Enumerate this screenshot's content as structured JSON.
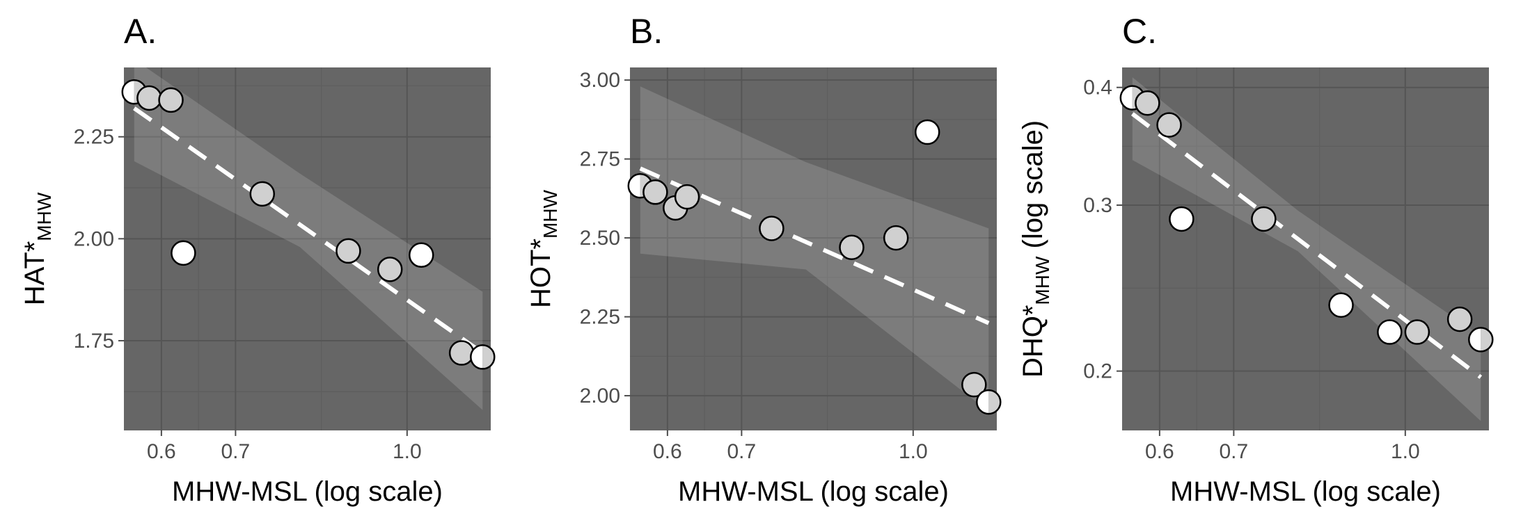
{
  "chart_data": [
    {
      "type": "scatter",
      "panel_label": "A.",
      "xlabel": "MHW-MSL (log scale)",
      "ylabel_main": "HAT*",
      "ylabel_sub": "MHW",
      "ylabel_suffix": "",
      "x_scale": "log",
      "y_scale": "linear",
      "xlim": [
        0.555,
        1.19
      ],
      "ylim": [
        1.53,
        2.42
      ],
      "x_ticks": [
        0.6,
        0.7,
        1.0
      ],
      "x_tick_labels": [
        "0.6",
        "0.7",
        "1.0"
      ],
      "y_ticks": [
        1.75,
        2.0,
        2.25
      ],
      "y_tick_labels": [
        "1.75",
        "2.00",
        "2.25"
      ],
      "fit": {
        "x": [
          0.567,
          1.17
        ],
        "y": [
          2.32,
          1.72
        ]
      },
      "ribbon": {
        "x": [
          0.567,
          0.8,
          1.17
        ],
        "upper": [
          2.44,
          2.16,
          1.87
        ],
        "lower": [
          2.19,
          1.98,
          1.58
        ]
      },
      "points": [
        {
          "x": 0.567,
          "y": 2.36,
          "fill": "half"
        },
        {
          "x": 0.585,
          "y": 2.345,
          "fill": "grey"
        },
        {
          "x": 0.612,
          "y": 2.34,
          "fill": "grey"
        },
        {
          "x": 0.628,
          "y": 1.965,
          "fill": "white"
        },
        {
          "x": 0.74,
          "y": 2.11,
          "fill": "grey"
        },
        {
          "x": 0.885,
          "y": 1.97,
          "fill": "grey"
        },
        {
          "x": 0.965,
          "y": 1.925,
          "fill": "grey"
        },
        {
          "x": 1.03,
          "y": 1.96,
          "fill": "white"
        },
        {
          "x": 1.12,
          "y": 1.72,
          "fill": "grey"
        },
        {
          "x": 1.17,
          "y": 1.71,
          "fill": "half"
        }
      ],
      "grid": true
    },
    {
      "type": "scatter",
      "panel_label": "B.",
      "xlabel": "MHW-MSL (log scale)",
      "ylabel_main": "HOT*",
      "ylabel_sub": "MHW",
      "ylabel_suffix": "",
      "x_scale": "log",
      "y_scale": "linear",
      "xlim": [
        0.555,
        1.19
      ],
      "ylim": [
        1.89,
        3.04
      ],
      "x_ticks": [
        0.6,
        0.7,
        1.0
      ],
      "x_tick_labels": [
        "0.6",
        "0.7",
        "1.0"
      ],
      "y_ticks": [
        2.0,
        2.25,
        2.5,
        2.75,
        3.0
      ],
      "y_tick_labels": [
        "2.00",
        "2.25",
        "2.50",
        "2.75",
        "3.00"
      ],
      "fit": {
        "x": [
          0.567,
          1.17
        ],
        "y": [
          2.72,
          2.23
        ]
      },
      "ribbon": {
        "x": [
          0.567,
          0.8,
          1.17
        ],
        "upper": [
          2.98,
          2.74,
          2.53
        ],
        "lower": [
          2.45,
          2.4,
          1.95
        ]
      },
      "points": [
        {
          "x": 0.567,
          "y": 2.665,
          "fill": "half"
        },
        {
          "x": 0.585,
          "y": 2.645,
          "fill": "grey"
        },
        {
          "x": 0.61,
          "y": 2.595,
          "fill": "grey"
        },
        {
          "x": 0.625,
          "y": 2.63,
          "fill": "grey"
        },
        {
          "x": 0.745,
          "y": 2.53,
          "fill": "grey"
        },
        {
          "x": 0.88,
          "y": 2.47,
          "fill": "grey"
        },
        {
          "x": 0.965,
          "y": 2.5,
          "fill": "grey"
        },
        {
          "x": 1.03,
          "y": 2.835,
          "fill": "white"
        },
        {
          "x": 1.135,
          "y": 2.035,
          "fill": "grey"
        },
        {
          "x": 1.17,
          "y": 1.98,
          "fill": "half"
        }
      ],
      "grid": true
    },
    {
      "type": "scatter",
      "panel_label": "C.",
      "xlabel": "MHW-MSL (log scale)",
      "ylabel_main": "DHQ*",
      "ylabel_sub": "MHW",
      "ylabel_suffix": " (log scale)",
      "x_scale": "log",
      "y_scale": "log",
      "xlim": [
        0.555,
        1.19
      ],
      "ylim": [
        0.173,
        0.42
      ],
      "x_ticks": [
        0.6,
        0.7,
        1.0
      ],
      "x_tick_labels": [
        "0.6",
        "0.7",
        "1.0"
      ],
      "y_ticks": [
        0.2,
        0.3,
        0.4
      ],
      "y_tick_labels": [
        "0.2",
        "0.3",
        "0.4"
      ],
      "fit": {
        "x": [
          0.567,
          1.17
        ],
        "y": [
          0.375,
          0.197
        ]
      },
      "ribbon": {
        "x": [
          0.567,
          0.8,
          1.17
        ],
        "upper": [
          0.41,
          0.296,
          0.218
        ],
        "lower": [
          0.335,
          0.268,
          0.177
        ]
      },
      "points": [
        {
          "x": 0.567,
          "y": 0.39,
          "fill": "half"
        },
        {
          "x": 0.585,
          "y": 0.385,
          "fill": "grey"
        },
        {
          "x": 0.612,
          "y": 0.365,
          "fill": "grey"
        },
        {
          "x": 0.628,
          "y": 0.29,
          "fill": "white"
        },
        {
          "x": 0.745,
          "y": 0.29,
          "fill": "grey"
        },
        {
          "x": 0.875,
          "y": 0.235,
          "fill": "white"
        },
        {
          "x": 0.968,
          "y": 0.22,
          "fill": "white"
        },
        {
          "x": 1.025,
          "y": 0.22,
          "fill": "grey"
        },
        {
          "x": 1.12,
          "y": 0.227,
          "fill": "grey"
        },
        {
          "x": 1.17,
          "y": 0.216,
          "fill": "half"
        }
      ],
      "grid": true
    }
  ]
}
